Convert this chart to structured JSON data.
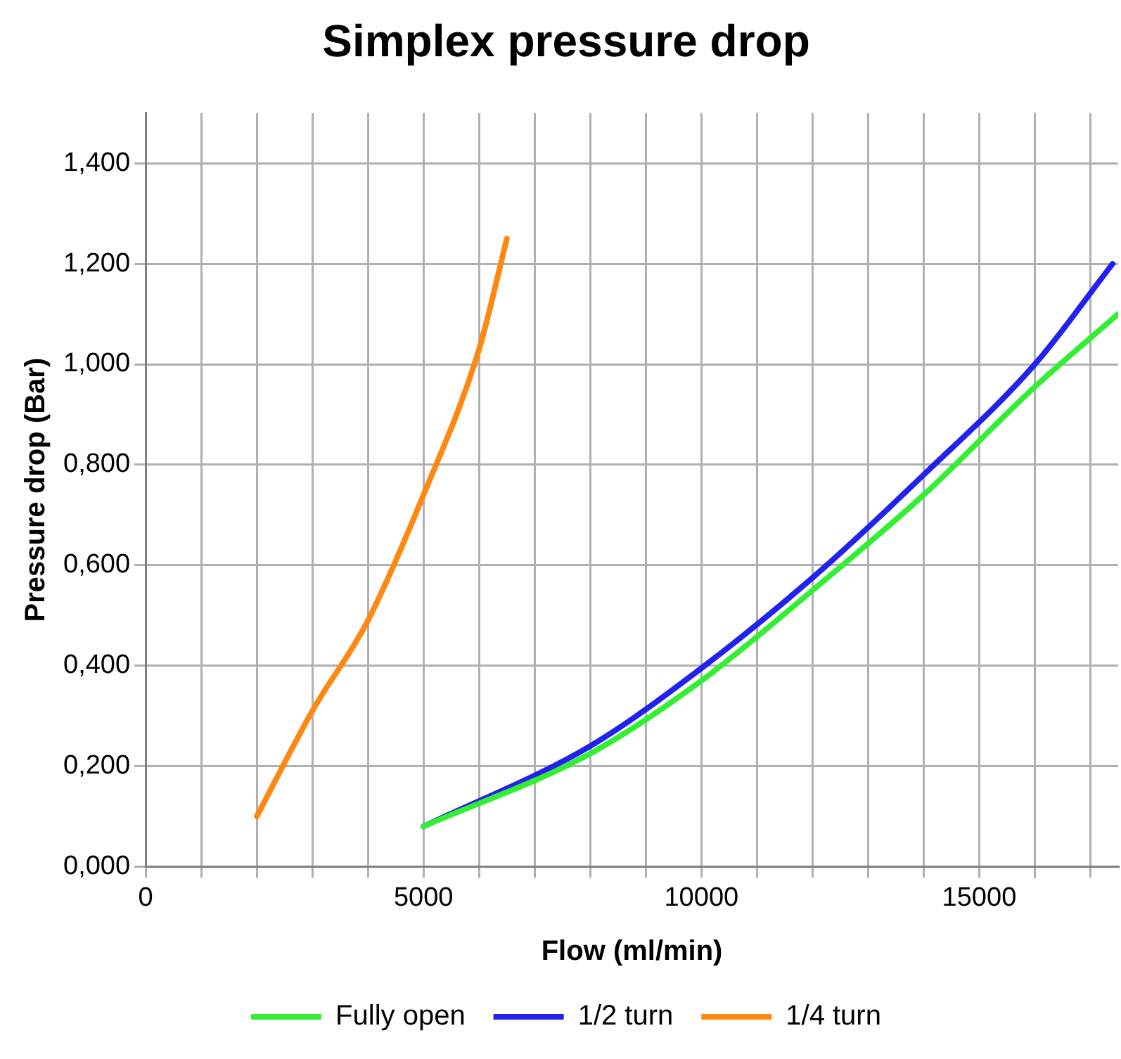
{
  "chart_data": {
    "type": "line",
    "title": "Simplex pressure drop",
    "xlabel": "Flow (ml/min)",
    "ylabel": "Pressure drop (Bar)",
    "xlim": [
      0,
      17500
    ],
    "xticks": [
      0,
      {
        "value": 1000,
        "label": null
      },
      {
        "value": 2000,
        "label": null
      },
      {
        "value": 3000,
        "label": null
      },
      {
        "value": 4000,
        "label": null
      },
      5000,
      {
        "value": 6000,
        "label": null
      },
      {
        "value": 7000,
        "label": null
      },
      {
        "value": 8000,
        "label": null
      },
      {
        "value": 9000,
        "label": null
      },
      10000,
      {
        "value": 11000,
        "label": null
      },
      {
        "value": 12000,
        "label": null
      },
      {
        "value": 13000,
        "label": null
      },
      {
        "value": 14000,
        "label": null
      },
      15000,
      {
        "value": 16000,
        "label": null
      },
      {
        "value": 17000,
        "label": null
      }
    ],
    "ylim": [
      0,
      1.5
    ],
    "yticks": [
      {
        "value": 0,
        "label": "0,000"
      },
      {
        "value": 0.2,
        "label": "0,200"
      },
      {
        "value": 0.4,
        "label": "0,400"
      },
      {
        "value": 0.6,
        "label": "0,600"
      },
      {
        "value": 0.8,
        "label": "0,800"
      },
      {
        "value": 1.0,
        "label": "1,000"
      },
      {
        "value": 1.2,
        "label": "1,200"
      },
      {
        "value": 1.4,
        "label": "1,400"
      }
    ],
    "grid": true,
    "legend": "bottom",
    "marker": "none",
    "line_style": "solid",
    "series": [
      {
        "name": "Fully open",
        "color": "#33ee33",
        "x": [
          5000,
          8000,
          10000,
          12000,
          14000,
          16000,
          17500
        ],
        "values": [
          0.08,
          0.225,
          0.37,
          0.55,
          0.74,
          0.955,
          1.1
        ]
      },
      {
        "name": "1/2 turn",
        "color": "#2222ee",
        "x": [
          5000,
          8000,
          10000,
          12000,
          14000,
          16000,
          17400
        ],
        "values": [
          0.08,
          0.24,
          0.395,
          0.575,
          0.78,
          1.0,
          1.2
        ]
      },
      {
        "name": "1/4 turn",
        "color": "#ff8811",
        "x": [
          2000,
          3000,
          4000,
          5000,
          6000,
          6500
        ],
        "values": [
          0.1,
          0.31,
          0.49,
          0.74,
          1.03,
          1.25
        ]
      }
    ]
  }
}
